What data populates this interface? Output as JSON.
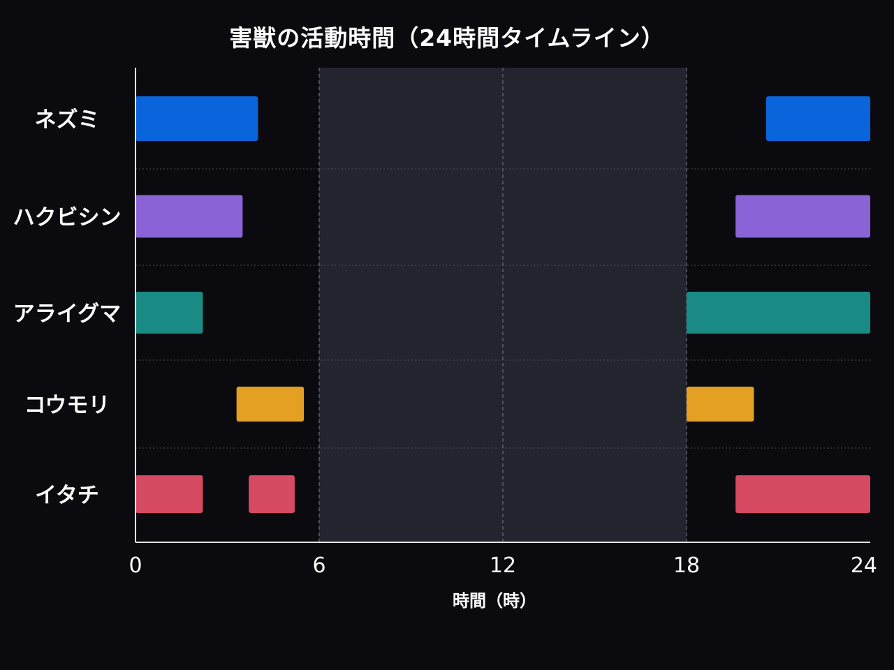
{
  "chart_data": {
    "type": "timeline",
    "title": "害獣の活動時間（24時間タイムライン）",
    "xlabel": "時間（時）",
    "ylabel": "",
    "xlim": [
      0,
      24
    ],
    "x_ticks": [
      0,
      6,
      12,
      18,
      24
    ],
    "x_tick_labels": [
      "0",
      "6",
      "12",
      "18",
      "24"
    ],
    "daytime_shading": {
      "start": 6,
      "end": 18,
      "color": "#22252d"
    },
    "categories": [
      "ネズミ",
      "ハクビシン",
      "アライグマ",
      "コウモリ",
      "イタチ"
    ],
    "series": [
      {
        "name": "ネズミ",
        "color": "#0a64db",
        "intervals": [
          [
            0,
            4
          ],
          [
            20.6,
            24
          ]
        ]
      },
      {
        "name": "ハクビシン",
        "color": "#8a63d7",
        "intervals": [
          [
            0,
            3.5
          ],
          [
            19.6,
            24
          ]
        ]
      },
      {
        "name": "アライグマ",
        "color": "#198b84",
        "intervals": [
          [
            0,
            2.2
          ],
          [
            18,
            24
          ]
        ]
      },
      {
        "name": "コウモリ",
        "color": "#e4a022",
        "intervals": [
          [
            3.3,
            5.5
          ],
          [
            18,
            20.2
          ]
        ]
      },
      {
        "name": "イタチ",
        "color": "#d64a62",
        "intervals": [
          [
            0,
            2.2
          ],
          [
            3.7,
            5.2
          ],
          [
            19.6,
            24
          ]
        ]
      }
    ]
  }
}
